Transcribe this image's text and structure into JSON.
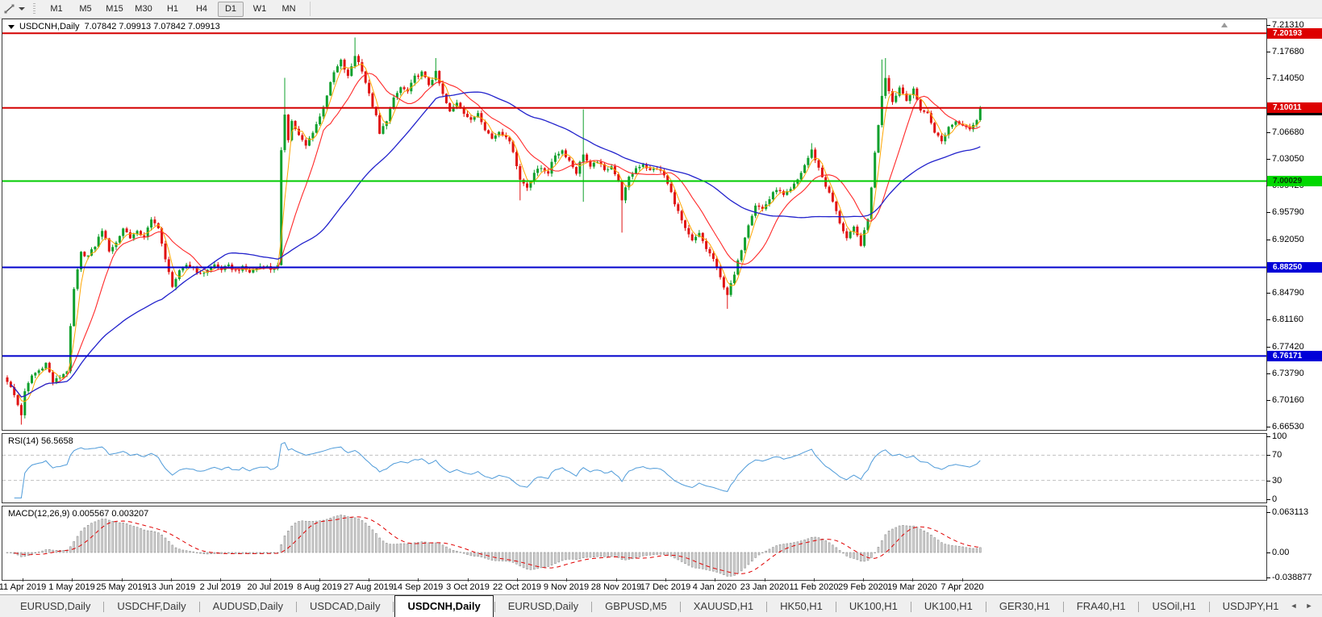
{
  "toolbar": {
    "timeframes": [
      "M1",
      "M5",
      "M15",
      "M30",
      "H1",
      "H4",
      "D1",
      "W1",
      "MN"
    ],
    "active_timeframe": "D1"
  },
  "chart": {
    "symbol_title": "USDCNH,Daily",
    "ohlc_text": "7.07842 7.09913 7.07842 7.09913",
    "price_ticks": [
      "7.21310",
      "7.17680",
      "7.14050",
      "7.06680",
      "7.03050",
      "6.99420",
      "6.95790",
      "6.92050",
      "6.84790",
      "6.81160",
      "6.77420",
      "6.73790",
      "6.70160",
      "6.66530"
    ],
    "hlines": [
      {
        "price": 7.20193,
        "label": "7.20193",
        "line_color": "#d40000",
        "badge_bg": "#dd0000",
        "badge_fg": "#ffffff"
      },
      {
        "price": 7.10011,
        "label": "7.10011",
        "line_color": "#d40000",
        "badge_bg": "#dd0000",
        "badge_fg": "#ffffff"
      },
      {
        "price": 7.00029,
        "label": "7.00029",
        "line_color": "#00cc00",
        "badge_bg": "#00d800",
        "badge_fg": "#063306"
      },
      {
        "price": 6.8825,
        "label": "6.88250",
        "line_color": "#0000cc",
        "badge_bg": "#0000d8",
        "badge_fg": "#ffffff"
      },
      {
        "price": 6.76171,
        "label": "6.76171",
        "line_color": "#0000cc",
        "badge_bg": "#0000d8",
        "badge_fg": "#ffffff"
      }
    ],
    "bid_badge": {
      "price": 7.09913,
      "label": "7.09913",
      "badge_bg": "#000000",
      "badge_fg": "#ffffff"
    }
  },
  "rsi_panel": {
    "label": "RSI(14) 56.5658",
    "ticks": [
      {
        "value": 100,
        "label": "100"
      },
      {
        "value": 70,
        "label": "70"
      },
      {
        "value": 30,
        "label": "30"
      },
      {
        "value": 0,
        "label": "0"
      }
    ],
    "dashed_levels": [
      70,
      30
    ]
  },
  "macd_panel": {
    "label": "MACD(12,26,9) 0.005567 0.003207",
    "ticks": [
      {
        "value": 0.063113,
        "label": "0.063113"
      },
      {
        "value": 0,
        "label": "0.00"
      },
      {
        "value": -0.038877,
        "label": "-0.038877"
      }
    ]
  },
  "date_axis": [
    "11 Apr 2019",
    "1 May 2019",
    "25 May 2019",
    "13 Jun 2019",
    "2 Jul 2019",
    "20 Jul 2019",
    "8 Aug 2019",
    "27 Aug 2019",
    "14 Sep 2019",
    "3 Oct 2019",
    "22 Oct 2019",
    "9 Nov 2019",
    "28 Nov 2019",
    "17 Dec 2019",
    "4 Jan 2020",
    "23 Jan 2020",
    "11 Feb 2020",
    "29 Feb 2020",
    "19 Mar 2020",
    "7 Apr 2020"
  ],
  "tab_bar": {
    "tabs": [
      {
        "label": "EURUSD,Daily",
        "active": false
      },
      {
        "label": "USDCHF,Daily",
        "active": false
      },
      {
        "label": "AUDUSD,Daily",
        "active": false
      },
      {
        "label": "USDCAD,Daily",
        "active": false
      },
      {
        "label": "USDCNH,Daily",
        "active": true
      },
      {
        "label": "EURUSD,Daily",
        "active": false
      },
      {
        "label": "GBPUSD,M5",
        "active": false
      },
      {
        "label": "XAUUSD,H1",
        "active": false
      },
      {
        "label": "HK50,H1",
        "active": false
      },
      {
        "label": "UK100,H1",
        "active": false
      },
      {
        "label": "UK100,H1",
        "active": false
      },
      {
        "label": "GER30,H1",
        "active": false
      },
      {
        "label": "FRA40,H1",
        "active": false
      },
      {
        "label": "USOil,H1",
        "active": false
      },
      {
        "label": "USDJPY,H1",
        "active": false
      }
    ],
    "scroll_left": "◄",
    "scroll_right": "►"
  },
  "chart_data": {
    "type": "candlestick",
    "symbol": "USDCNH",
    "timeframe": "Daily",
    "open": 7.07842,
    "high": 7.09913,
    "low": 7.07842,
    "close": 7.09913,
    "price_max_top": 7.2131,
    "price_min_bottom": 6.6653,
    "candle_count": 278,
    "noise": 0.005,
    "close_anchors": [
      [
        0,
        6.728
      ],
      [
        2,
        6.708
      ],
      [
        4,
        6.682
      ],
      [
        5,
        6.712
      ],
      [
        7,
        6.735
      ],
      [
        9,
        6.742
      ],
      [
        11,
        6.752
      ],
      [
        13,
        6.726
      ],
      [
        15,
        6.733
      ],
      [
        17,
        6.742
      ],
      [
        18,
        6.8
      ],
      [
        19,
        6.852
      ],
      [
        20,
        6.878
      ],
      [
        21,
        6.902
      ],
      [
        23,
        6.898
      ],
      [
        25,
        6.912
      ],
      [
        27,
        6.934
      ],
      [
        29,
        6.906
      ],
      [
        31,
        6.916
      ],
      [
        33,
        6.936
      ],
      [
        35,
        6.924
      ],
      [
        37,
        6.93
      ],
      [
        39,
        6.925
      ],
      [
        41,
        6.946
      ],
      [
        43,
        6.938
      ],
      [
        45,
        6.892
      ],
      [
        47,
        6.858
      ],
      [
        49,
        6.876
      ],
      [
        51,
        6.886
      ],
      [
        53,
        6.882
      ],
      [
        55,
        6.872
      ],
      [
        57,
        6.88
      ],
      [
        59,
        6.886
      ],
      [
        61,
        6.88
      ],
      [
        63,
        6.884
      ],
      [
        65,
        6.878
      ],
      [
        67,
        6.882
      ],
      [
        69,
        6.876
      ],
      [
        71,
        6.882
      ],
      [
        73,
        6.886
      ],
      [
        75,
        6.88
      ],
      [
        77,
        6.884
      ],
      [
        78,
        7.04
      ],
      [
        79,
        7.092
      ],
      [
        80,
        7.058
      ],
      [
        81,
        7.082
      ],
      [
        83,
        7.062
      ],
      [
        85,
        7.048
      ],
      [
        87,
        7.068
      ],
      [
        89,
        7.088
      ],
      [
        91,
        7.118
      ],
      [
        93,
        7.148
      ],
      [
        95,
        7.164
      ],
      [
        97,
        7.142
      ],
      [
        99,
        7.172
      ],
      [
        101,
        7.152
      ],
      [
        103,
        7.118
      ],
      [
        105,
        7.088
      ],
      [
        106,
        7.064
      ],
      [
        108,
        7.084
      ],
      [
        110,
        7.112
      ],
      [
        112,
        7.128
      ],
      [
        114,
        7.122
      ],
      [
        116,
        7.142
      ],
      [
        118,
        7.148
      ],
      [
        120,
        7.132
      ],
      [
        122,
        7.148
      ],
      [
        124,
        7.118
      ],
      [
        126,
        7.094
      ],
      [
        128,
        7.108
      ],
      [
        130,
        7.094
      ],
      [
        132,
        7.082
      ],
      [
        134,
        7.094
      ],
      [
        136,
        7.072
      ],
      [
        138,
        7.058
      ],
      [
        140,
        7.068
      ],
      [
        142,
        7.062
      ],
      [
        144,
        7.042
      ],
      [
        146,
        7.002
      ],
      [
        148,
        6.992
      ],
      [
        150,
        7.012
      ],
      [
        152,
        7.018
      ],
      [
        154,
        7.012
      ],
      [
        156,
        7.036
      ],
      [
        158,
        7.042
      ],
      [
        160,
        7.028
      ],
      [
        162,
        7.012
      ],
      [
        164,
        7.038
      ],
      [
        166,
        7.018
      ],
      [
        168,
        7.028
      ],
      [
        170,
        7.014
      ],
      [
        172,
        7.022
      ],
      [
        174,
        6.998
      ],
      [
        175,
        6.976
      ],
      [
        177,
        7.004
      ],
      [
        179,
        7.018
      ],
      [
        181,
        7.024
      ],
      [
        183,
        7.014
      ],
      [
        185,
        7.018
      ],
      [
        187,
        7.008
      ],
      [
        189,
        6.984
      ],
      [
        191,
        6.958
      ],
      [
        193,
        6.934
      ],
      [
        195,
        6.918
      ],
      [
        197,
        6.928
      ],
      [
        199,
        6.908
      ],
      [
        201,
        6.894
      ],
      [
        203,
        6.868
      ],
      [
        205,
        6.846
      ],
      [
        207,
        6.872
      ],
      [
        209,
        6.908
      ],
      [
        211,
        6.942
      ],
      [
        213,
        6.968
      ],
      [
        215,
        6.962
      ],
      [
        217,
        6.976
      ],
      [
        219,
        6.99
      ],
      [
        221,
        6.98
      ],
      [
        223,
        6.988
      ],
      [
        225,
        7.002
      ],
      [
        227,
        7.022
      ],
      [
        229,
        7.042
      ],
      [
        231,
        7.018
      ],
      [
        233,
        6.994
      ],
      [
        235,
        6.972
      ],
      [
        237,
        6.944
      ],
      [
        239,
        6.922
      ],
      [
        241,
        6.936
      ],
      [
        243,
        6.914
      ],
      [
        245,
        6.948
      ],
      [
        247,
        7.038
      ],
      [
        249,
        7.118
      ],
      [
        250,
        7.142
      ],
      [
        252,
        7.108
      ],
      [
        254,
        7.128
      ],
      [
        256,
        7.112
      ],
      [
        258,
        7.124
      ],
      [
        260,
        7.098
      ],
      [
        262,
        7.092
      ],
      [
        264,
        7.068
      ],
      [
        266,
        7.054
      ],
      [
        268,
        7.074
      ],
      [
        270,
        7.082
      ],
      [
        272,
        7.078
      ],
      [
        274,
        7.072
      ],
      [
        276,
        7.082
      ],
      [
        277,
        7.09913
      ]
    ],
    "wick_overrides": [
      [
        4,
        null,
        6.668
      ],
      [
        79,
        7.141,
        null
      ],
      [
        99,
        7.196,
        null
      ],
      [
        122,
        7.168,
        null
      ],
      [
        146,
        null,
        6.974
      ],
      [
        164,
        7.098,
        6.972
      ],
      [
        175,
        null,
        6.93
      ],
      [
        205,
        null,
        6.826
      ],
      [
        229,
        7.052,
        null
      ],
      [
        249,
        7.166,
        null
      ],
      [
        250,
        7.168,
        null
      ]
    ],
    "indicators": {
      "rsi_period": 14,
      "rsi_value": 56.5658,
      "macd_fast": 12,
      "macd_slow": 26,
      "macd_signal_period": 9,
      "macd_value": 0.005567,
      "macd_signal_value": 0.003207,
      "ma_fast": 4,
      "ma_mid": 13,
      "ma_slow": 45
    },
    "colors": {
      "up": "#0fa02c",
      "down": "#e01212",
      "ma_fast": "#ffa500",
      "ma_mid": "#ff2a2a",
      "ma_slow": "#2222cc",
      "rsi": "#4f9bd9",
      "rsi_dash": "#c0c0c0",
      "macd_hist_fill": "#d6d6d6",
      "macd_hist_stroke": "#8e8e8e",
      "macd_signal": "#e00000"
    }
  }
}
